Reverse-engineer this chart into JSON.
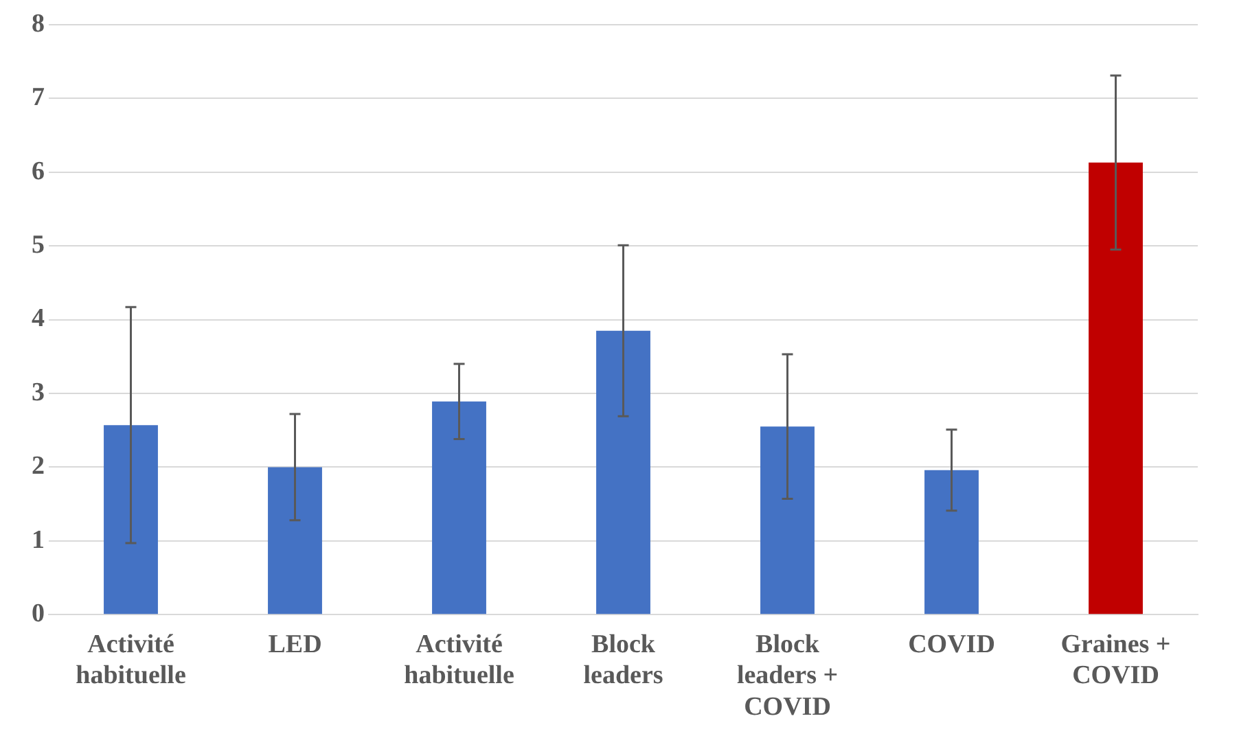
{
  "chart_data": {
    "type": "bar",
    "categories": [
      "Activité habituelle",
      "LED",
      "Activité habituelle",
      "Block leaders",
      "Block leaders + COVID",
      "COVID",
      "Graines + COVID"
    ],
    "values": [
      2.57,
      2.0,
      2.89,
      3.85,
      2.55,
      1.96,
      6.13
    ],
    "colors": [
      "#4472c4",
      "#4472c4",
      "#4472c4",
      "#4472c4",
      "#4472c4",
      "#4472c4",
      "#c00000"
    ],
    "errors": [
      1.6,
      0.72,
      0.51,
      1.16,
      0.98,
      0.55,
      1.18
    ],
    "ylim": [
      0,
      8
    ],
    "yticks": [
      0,
      1,
      2,
      3,
      4,
      5,
      6,
      7,
      8
    ],
    "grid": "y",
    "legend": false
  }
}
